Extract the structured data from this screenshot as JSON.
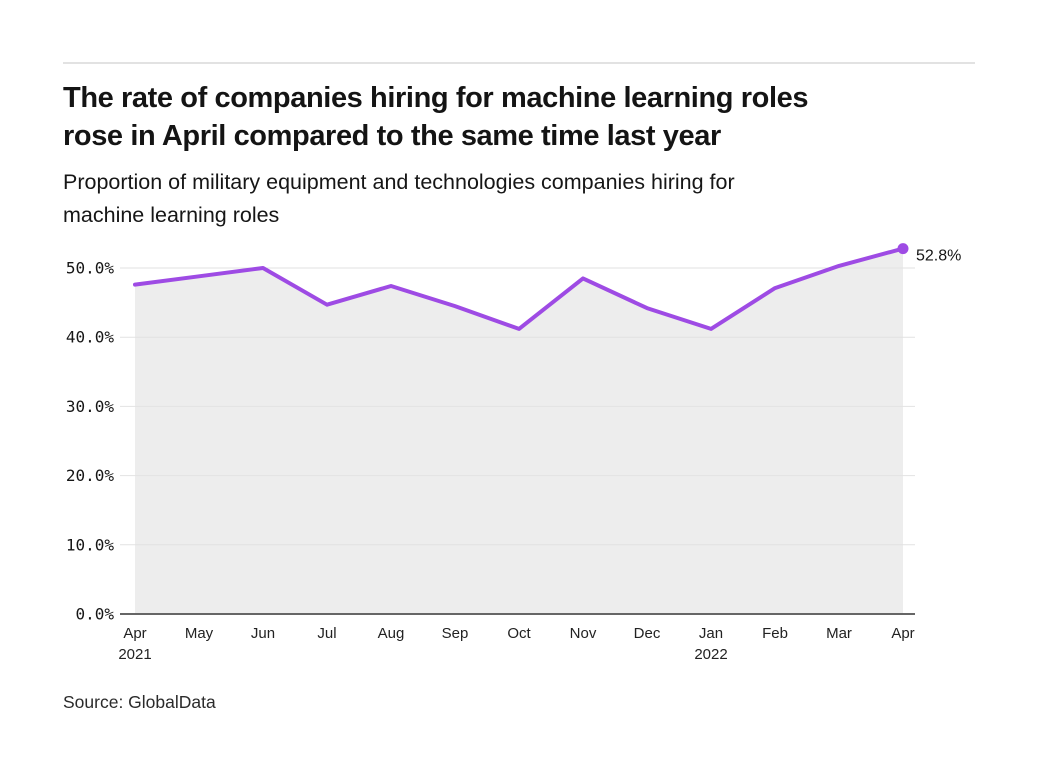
{
  "header": {
    "title_lines": [
      "The rate of companies hiring for machine learning roles",
      "rose in April compared to the same time last year"
    ],
    "subtitle_lines": [
      "Proportion of military equipment and technologies companies hiring for",
      "machine learning roles"
    ]
  },
  "chart_data": {
    "type": "line",
    "title": "The rate of companies hiring for machine learning roles rose in April compared to the same time last year",
    "subtitle": "Proportion of military equipment and technologies companies hiring for machine learning roles",
    "categories": [
      "Apr",
      "May",
      "Jun",
      "Jul",
      "Aug",
      "Sep",
      "Oct",
      "Nov",
      "Dec",
      "Jan",
      "Feb",
      "Mar",
      "Apr"
    ],
    "year_marks": [
      {
        "index": 0,
        "label": "2021"
      },
      {
        "index": 9,
        "label": "2022"
      }
    ],
    "series": [
      {
        "name": "Proportion of companies hiring for machine learning roles",
        "values": [
          47.6,
          48.8,
          50.0,
          44.7,
          47.4,
          44.5,
          41.2,
          48.5,
          44.2,
          41.2,
          47.1,
          50.3,
          52.8
        ]
      }
    ],
    "unit": "%",
    "end_point_label": "52.8%",
    "y_ticks": [
      0,
      10,
      20,
      30,
      40,
      50
    ],
    "y_tick_labels": [
      "0.0%",
      "10.0%",
      "20.0%",
      "30.0%",
      "40.0%",
      "50.0%"
    ],
    "ylim": [
      0,
      55
    ],
    "grid": "horizontal",
    "legend": "none",
    "line_color": "#9e4be4",
    "area_fill_color": "#ededed",
    "gridline_color": "#e2e2e2",
    "axis_line_color": "#666666",
    "label_color": "#161616"
  },
  "footer": {
    "source": "Source: GlobalData"
  }
}
